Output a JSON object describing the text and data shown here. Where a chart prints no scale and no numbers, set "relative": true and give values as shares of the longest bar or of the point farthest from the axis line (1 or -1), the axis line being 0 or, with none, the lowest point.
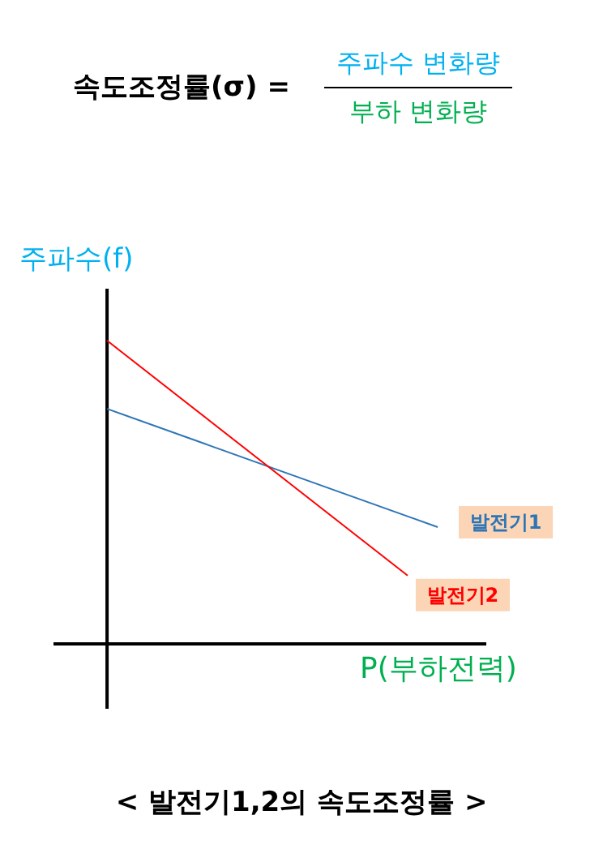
{
  "chart_data": {
    "type": "line",
    "relative": true,
    "title": "< 발전기1,2의 속도조정률 >",
    "xlabel": "P(부하전력)",
    "ylabel": "주파수(f)",
    "annotations": [
      "속도조정률(σ) =",
      "주파수 변화량",
      "부하 변화량"
    ],
    "categories": [
      null,
      null,
      null,
      null,
      null,
      null,
      null,
      null,
      null,
      null,
      null,
      null
    ],
    "grid": false,
    "legend": false,
    "marker": "none",
    "line_style": "solid",
    "series": [
      {
        "name": "발전기1",
        "color": "#2e75b6",
        "values": [
          0.775,
          null,
          null,
          null,
          null,
          null,
          null,
          null,
          null,
          null,
          null,
          0.385
        ]
      },
      {
        "name": "발전기2",
        "color": "#ff0000",
        "values": [
          1.0,
          null,
          null,
          null,
          null,
          null,
          null,
          null,
          null,
          null,
          0.225,
          null
        ]
      }
    ]
  }
}
